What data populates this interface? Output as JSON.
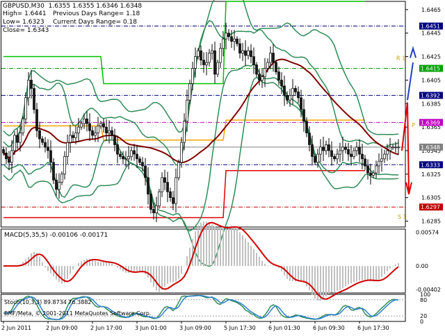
{
  "header": {
    "symbol_line": "GBPUSD,M30  1.6355 1.6355 1.6346 1.6348",
    "high": "High= 1.6441",
    "low": "Low= 1.6323",
    "close": "Close= 1.6343",
    "prev_range": "Previous Days Range= 1.18",
    "curr_range": "Current Days Range= 0.18"
  },
  "colors": {
    "background": "#ffffff",
    "bull_candle": "#ffffff",
    "bear_candle": "#1a1a1a",
    "bollinger": "#2e8b57",
    "moving_average": "#800000",
    "orange_channel": "#ffa500",
    "green_step": "#00c000",
    "red_step": "#e00000",
    "blue_arrow": "#2040c0",
    "macd_hist": "#c0c0c0",
    "macd_signal": "#d00000",
    "stoch_main": "#2e8b57",
    "stoch_signal": "#2a7fd0"
  },
  "price_axis": {
    "ticks": [
      "1.6465",
      "1.6445",
      "1.6425",
      "1.6405",
      "1.6385",
      "1.6365",
      "1.6345",
      "1.6325",
      "1.6305",
      "1.6285"
    ],
    "range": [
      1.628,
      1.6472
    ]
  },
  "price_levels": [
    {
      "label": "1.6451",
      "value": 1.6451,
      "color": "#000080",
      "style": "dashdot"
    },
    {
      "label": "1.6415",
      "value": 1.6415,
      "color": "#00a000",
      "style": "dashdot"
    },
    {
      "label": "1.6392",
      "value": 1.6392,
      "color": "#000080",
      "style": "dashdot"
    },
    {
      "label": "1.6369",
      "value": 1.6369,
      "color": "#c000c0",
      "style": "dashdot"
    },
    {
      "label": "1.6348",
      "value": 1.6348,
      "color": "#808080",
      "style": "solid"
    },
    {
      "label": "1.6333",
      "value": 1.6333,
      "color": "#000080",
      "style": "dashdot"
    },
    {
      "label": "1.6297",
      "value": 1.6297,
      "color": "#c00000",
      "style": "dashdot"
    }
  ],
  "pivot_labels": {
    "r1": "R 1",
    "p": "P",
    "s1": "S 1"
  },
  "macd": {
    "label": "MACD(5,35,5) -0.00106 -0.00171",
    "ticks": [
      "0.00574",
      "0.00",
      "-0.00402"
    ],
    "range": [
      -0.0046,
      0.0063
    ]
  },
  "stoch": {
    "label": "Stoch(10,3,3) 89.8734 76.3882",
    "ticks": [
      "100",
      "80",
      "20",
      "0"
    ],
    "range": [
      0,
      100
    ]
  },
  "copyright": "BMF/Meta, © 2001-2011 MetaQuotes Software Corp.",
  "x_axis": {
    "labels": [
      {
        "text": "2 Jun 2011",
        "bar": 0
      },
      {
        "text": "2 Jun 09:00",
        "bar": 16
      },
      {
        "text": "2 Jun 17:00",
        "bar": 32
      },
      {
        "text": "3 Jun 01:00",
        "bar": 48
      },
      {
        "text": "3 Jun 09:00",
        "bar": 64
      },
      {
        "text": "5 Jun 17:30",
        "bar": 80
      },
      {
        "text": "6 Jun 01:30",
        "bar": 96
      },
      {
        "text": "6 Jun 09:30",
        "bar": 112
      },
      {
        "text": "6 Jun 17:30",
        "bar": 128
      }
    ]
  },
  "chart_data": {
    "type": "candlestick",
    "symbol": "GBPUSD",
    "timeframe": "M30",
    "bars": 143,
    "close": [
      1.6343,
      1.6338,
      1.6335,
      1.6345,
      1.6358,
      1.6352,
      1.636,
      1.6372,
      1.639,
      1.6405,
      1.6398,
      1.638,
      1.6362,
      1.6355,
      1.6352,
      1.6348,
      1.6345,
      1.6335,
      1.632,
      1.6312,
      1.6318,
      1.6325,
      1.634,
      1.6352,
      1.6358,
      1.6356,
      1.636,
      1.6365,
      1.6368,
      1.6372,
      1.6368,
      1.6362,
      1.6358,
      1.636,
      1.6366,
      1.6368,
      1.6365,
      1.636,
      1.6362,
      1.6358,
      1.635,
      1.6342,
      1.634,
      1.6338,
      1.6338,
      1.634,
      1.6345,
      1.6342,
      1.6338,
      1.6335,
      1.6332,
      1.6322,
      1.6308,
      1.6295,
      1.6292,
      1.6298,
      1.631,
      1.6322,
      1.6318,
      1.631,
      1.6305,
      1.63,
      1.6322,
      1.6335,
      1.6352,
      1.637,
      1.6388,
      1.6402,
      1.6415,
      1.6425,
      1.643,
      1.6422,
      1.6418,
      1.642,
      1.6428,
      1.643,
      1.641,
      1.642,
      1.6432,
      1.644,
      1.6445,
      1.6442,
      1.6438,
      1.644,
      1.6436,
      1.6428,
      1.643,
      1.6426,
      1.643,
      1.6425,
      1.6418,
      1.641,
      1.6405,
      1.6408,
      1.6415,
      1.642,
      1.6428,
      1.642,
      1.6412,
      1.6405,
      1.64,
      1.6392,
      1.6388,
      1.6392,
      1.6398,
      1.6395,
      1.639,
      1.638,
      1.637,
      1.636,
      1.635,
      1.634,
      1.6335,
      1.6342,
      1.6348,
      1.6345,
      1.635,
      1.6345,
      1.634,
      1.6338,
      1.6342,
      1.6345,
      1.6348,
      1.6346,
      1.6342,
      1.634,
      1.6345,
      1.6348,
      1.6342,
      1.6338,
      1.6332,
      1.6326,
      1.6324,
      1.6326,
      1.6332,
      1.6336,
      1.6338,
      1.6342,
      1.6345,
      1.6348,
      1.6348,
      1.6348,
      1.6348
    ]
  }
}
